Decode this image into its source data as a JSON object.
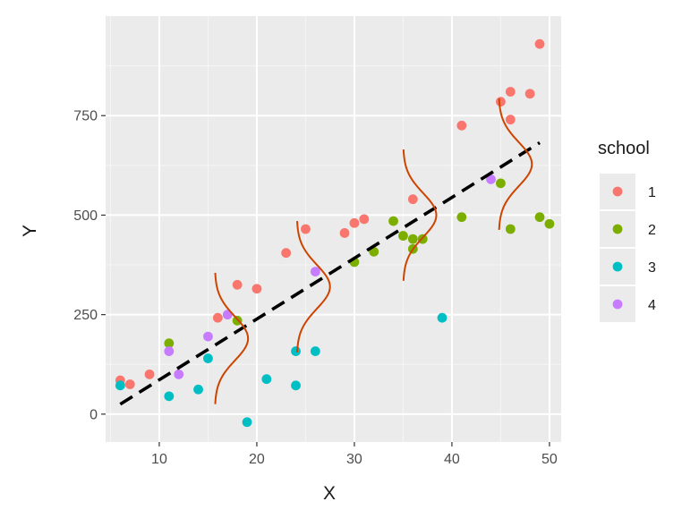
{
  "chart_data": {
    "type": "scatter",
    "xlabel": "X",
    "ylabel": "Y",
    "xlim": [
      4.5,
      51.2
    ],
    "ylim": [
      -70,
      1000
    ],
    "x_ticks": [
      10,
      20,
      30,
      40,
      50
    ],
    "y_ticks": [
      0,
      250,
      500,
      750
    ],
    "x_tick_labels": [
      "10",
      "20",
      "30",
      "40",
      "50"
    ],
    "y_tick_labels": [
      "0",
      "250",
      "500",
      "750"
    ],
    "grid": true,
    "legend": {
      "title": "school",
      "placement": "right",
      "entries": [
        "1",
        "2",
        "3",
        "4"
      ]
    },
    "series": [
      {
        "name": "1",
        "color": "#F8766D",
        "points": [
          [
            6,
            85
          ],
          [
            7,
            75
          ],
          [
            9,
            100
          ],
          [
            16,
            242
          ],
          [
            18,
            325
          ],
          [
            20,
            315
          ],
          [
            23,
            405
          ],
          [
            25,
            465
          ],
          [
            29,
            455
          ],
          [
            30,
            480
          ],
          [
            31,
            490
          ],
          [
            36,
            540
          ],
          [
            41,
            725
          ],
          [
            45,
            785
          ],
          [
            46,
            810
          ],
          [
            46,
            740
          ],
          [
            48,
            805
          ],
          [
            49,
            930
          ]
        ]
      },
      {
        "name": "2",
        "color": "#7CAE00",
        "points": [
          [
            11,
            178
          ],
          [
            18,
            235
          ],
          [
            30,
            382
          ],
          [
            32,
            408
          ],
          [
            34,
            485
          ],
          [
            35,
            448
          ],
          [
            36,
            440
          ],
          [
            36,
            415
          ],
          [
            37,
            440
          ],
          [
            41,
            495
          ],
          [
            45,
            580
          ],
          [
            46,
            465
          ],
          [
            49,
            495
          ],
          [
            50,
            478
          ]
        ]
      },
      {
        "name": "3",
        "color": "#00BFC4",
        "points": [
          [
            6,
            72
          ],
          [
            11,
            45
          ],
          [
            14,
            62
          ],
          [
            15,
            140
          ],
          [
            19,
            -20
          ],
          [
            21,
            88
          ],
          [
            24,
            158
          ],
          [
            24,
            72
          ],
          [
            26,
            158
          ],
          [
            39,
            242
          ]
        ]
      },
      {
        "name": "4",
        "color": "#C77CFF",
        "points": [
          [
            11,
            158
          ],
          [
            12,
            100
          ],
          [
            15,
            195
          ],
          [
            17,
            250
          ],
          [
            26,
            358
          ],
          [
            44,
            590
          ]
        ]
      }
    ],
    "regression_line": {
      "style": "dashed",
      "color": "#000000",
      "from": [
        6,
        25
      ],
      "to": [
        49,
        682
      ]
    },
    "density_curves": {
      "color": "#CC4400",
      "spread": 55,
      "centers": [
        {
          "x": 17.4,
          "y": 190
        },
        {
          "x": 25.8,
          "y": 320
        },
        {
          "x": 36.7,
          "y": 500
        },
        {
          "x": 46.5,
          "y": 628
        }
      ]
    }
  }
}
